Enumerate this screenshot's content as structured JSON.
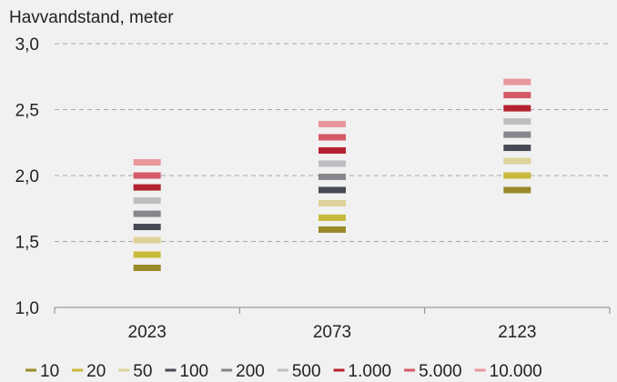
{
  "chart_data": {
    "type": "scatter",
    "ylabel": "Havvandstand, meter",
    "categories": [
      "2023",
      "2073",
      "2123"
    ],
    "ylim": [
      1.0,
      3.0
    ],
    "yticks": [
      1.0,
      1.5,
      2.0,
      2.5,
      3.0
    ],
    "ytick_labels": [
      "1,0",
      "1,5",
      "2,0",
      "2,5",
      "3,0"
    ],
    "grid": true,
    "legend_position": "bottom",
    "series": [
      {
        "name": "10",
        "color": "#9a8a2a",
        "values": [
          1.3,
          1.59,
          1.89
        ]
      },
      {
        "name": "20",
        "color": "#c9b93a",
        "values": [
          1.4,
          1.68,
          2.0
        ]
      },
      {
        "name": "50",
        "color": "#ddd39a",
        "values": [
          1.51,
          1.79,
          2.11
        ]
      },
      {
        "name": "100",
        "color": "#474a55",
        "values": [
          1.61,
          1.89,
          2.21
        ]
      },
      {
        "name": "200",
        "color": "#85878c",
        "values": [
          1.71,
          1.99,
          2.31
        ]
      },
      {
        "name": "500",
        "color": "#bdbec2",
        "values": [
          1.81,
          2.09,
          2.41
        ]
      },
      {
        "name": "1.000",
        "color": "#b3222f",
        "values": [
          1.91,
          2.19,
          2.51
        ]
      },
      {
        "name": "5.000",
        "color": "#d45a65",
        "values": [
          2.0,
          2.29,
          2.61
        ]
      },
      {
        "name": "10.000",
        "color": "#e8979c",
        "values": [
          2.1,
          2.39,
          2.71
        ]
      }
    ]
  }
}
